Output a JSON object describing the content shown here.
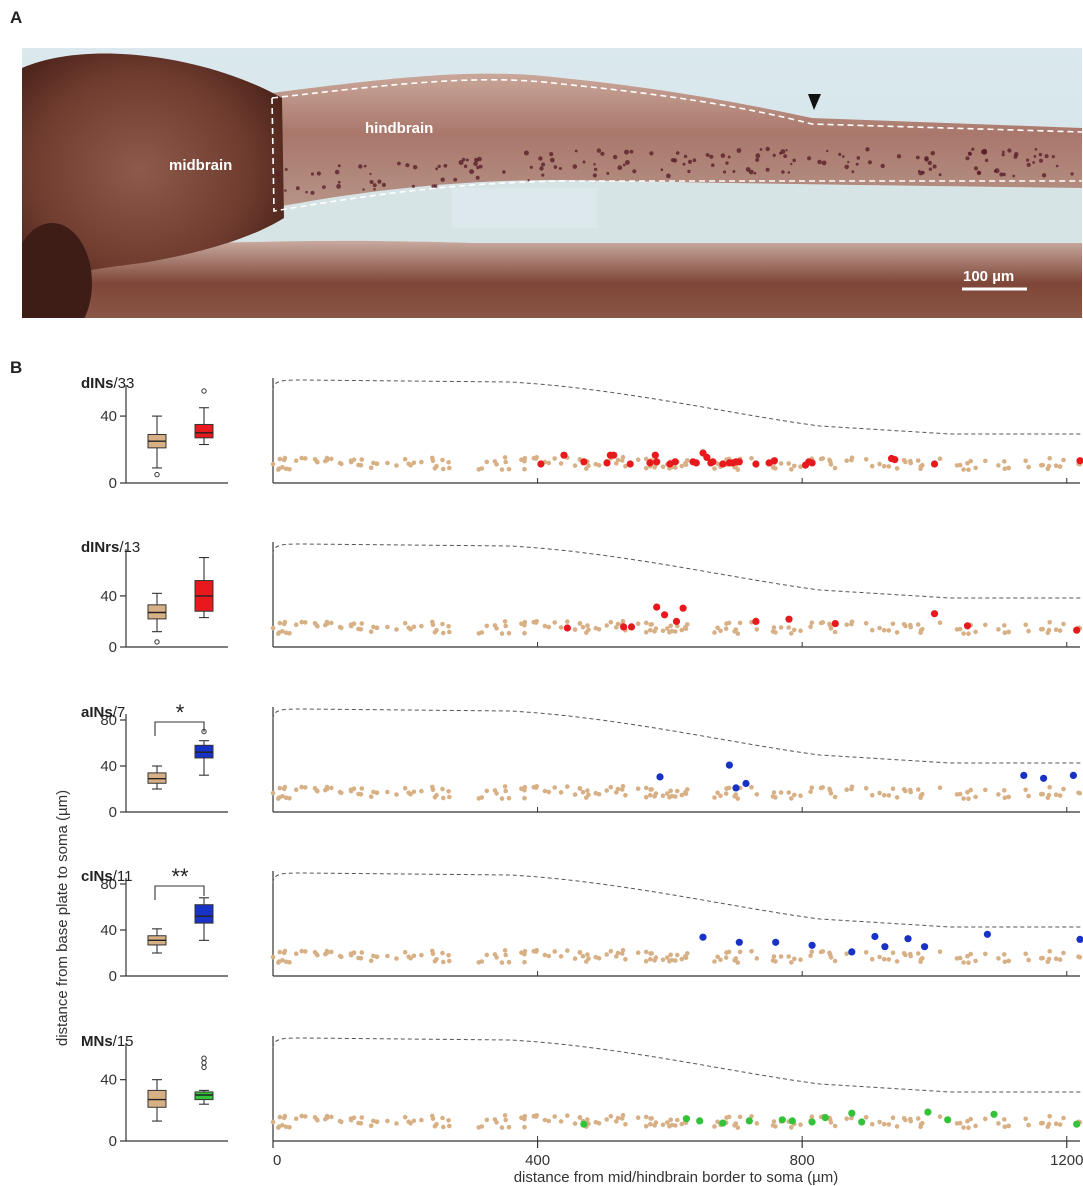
{
  "panel_a": {
    "letter": "A",
    "labels": {
      "midbrain": "midbrain",
      "hindbrain": "hindbrain"
    },
    "scale_bar": "100 µm"
  },
  "panel_b": {
    "letter": "B",
    "y_axis_title": "distance from base plate to soma (µm)",
    "x_axis_title": "distance from mid/hindbrain border to soma (µm)",
    "x_ticks": [
      "0",
      "400",
      "800",
      "1200"
    ]
  },
  "colors": {
    "background": "#d8b086",
    "red": "#e8191c",
    "blue": "#1732c4",
    "green": "#33c23a"
  },
  "chart_data": [
    {
      "type": "scatter",
      "title": "dINs/33",
      "ylim": [
        0,
        50
      ],
      "xlim": [
        0,
        1220
      ],
      "box": {
        "ticks": [
          "0",
          "40"
        ],
        "tick_values": [
          0,
          40
        ],
        "ylim": [
          0,
          55
        ],
        "background": {
          "whisker_low": 9,
          "q1": 21,
          "median": 25,
          "q3": 29,
          "whisker_high": 40,
          "outliers": [
            5
          ]
        },
        "labelled": {
          "whisker_low": 23,
          "q1": 27,
          "median": 30,
          "q3": 35,
          "whisker_high": 45,
          "outliers": [
            55
          ]
        }
      },
      "color": "#e8191c",
      "points": [
        [
          405,
          10
        ],
        [
          440,
          18
        ],
        [
          470,
          12
        ],
        [
          505,
          11
        ],
        [
          510,
          18
        ],
        [
          515,
          18
        ],
        [
          540,
          10
        ],
        [
          570,
          11
        ],
        [
          578,
          18
        ],
        [
          580,
          12
        ],
        [
          600,
          10
        ],
        [
          608,
          12
        ],
        [
          635,
          12
        ],
        [
          640,
          11
        ],
        [
          650,
          20
        ],
        [
          656,
          16
        ],
        [
          662,
          11
        ],
        [
          665,
          12
        ],
        [
          680,
          10
        ],
        [
          690,
          11
        ],
        [
          695,
          11
        ],
        [
          700,
          12
        ],
        [
          705,
          12
        ],
        [
          730,
          10
        ],
        [
          750,
          11
        ],
        [
          758,
          13
        ],
        [
          805,
          9
        ],
        [
          810,
          12
        ],
        [
          815,
          11
        ],
        [
          935,
          15
        ],
        [
          940,
          14
        ],
        [
          1000,
          10
        ],
        [
          1220,
          13
        ]
      ]
    },
    {
      "type": "scatter",
      "title": "dINrs/13",
      "ylim": [
        0,
        50
      ],
      "xlim": [
        0,
        1220
      ],
      "box": {
        "ticks": [
          "0",
          "40"
        ],
        "tick_values": [
          0,
          40
        ],
        "ylim": [
          0,
          72
        ],
        "background": {
          "whisker_low": 12,
          "q1": 22,
          "median": 27,
          "q3": 33,
          "whisker_high": 42,
          "outliers": [
            4
          ]
        },
        "labelled": {
          "whisker_low": 23,
          "q1": 28,
          "median": 40,
          "q3": 52,
          "whisker_high": 70,
          "outliers": []
        }
      },
      "color": "#e8191c",
      "points": [
        [
          445,
          10
        ],
        [
          530,
          11
        ],
        [
          542,
          11
        ],
        [
          580,
          29
        ],
        [
          592,
          22
        ],
        [
          610,
          16
        ],
        [
          620,
          28
        ],
        [
          730,
          16
        ],
        [
          780,
          18
        ],
        [
          850,
          14
        ],
        [
          1000,
          23
        ],
        [
          1050,
          12
        ],
        [
          1215,
          8
        ]
      ]
    },
    {
      "type": "scatter",
      "title": "aINs/7",
      "ylim": [
        0,
        75
      ],
      "xlim": [
        0,
        1220
      ],
      "box": {
        "ticks": [
          "0",
          "40",
          "80"
        ],
        "tick_values": [
          0,
          40,
          80
        ],
        "ylim": [
          0,
          80
        ],
        "background": {
          "whisker_low": 20,
          "q1": 25,
          "median": 29,
          "q3": 34,
          "whisker_high": 40,
          "outliers": []
        },
        "labelled": {
          "whisker_low": 32,
          "q1": 47,
          "median": 52,
          "q3": 58,
          "whisker_high": 62,
          "outliers": [
            70
          ]
        },
        "significance": "*"
      },
      "color": "#1732c4",
      "points": [
        [
          585,
          37
        ],
        [
          690,
          53
        ],
        [
          700,
          22
        ],
        [
          715,
          28
        ],
        [
          1135,
          39
        ],
        [
          1165,
          35
        ],
        [
          1210,
          39
        ]
      ]
    },
    {
      "type": "scatter",
      "title": "cINs/11",
      "ylim": [
        0,
        75
      ],
      "xlim": [
        0,
        1220
      ],
      "box": {
        "ticks": [
          "0",
          "40",
          "80"
        ],
        "tick_values": [
          0,
          40,
          80
        ],
        "ylim": [
          0,
          80
        ],
        "background": {
          "whisker_low": 20,
          "q1": 27,
          "median": 31,
          "q3": 35,
          "whisker_high": 41,
          "outliers": []
        },
        "labelled": {
          "whisker_low": 31,
          "q1": 46,
          "median": 52,
          "q3": 62,
          "whisker_high": 68,
          "outliers": []
        },
        "significance": "**"
      },
      "color": "#1732c4",
      "points": [
        [
          650,
          42
        ],
        [
          705,
          35
        ],
        [
          760,
          35
        ],
        [
          815,
          31
        ],
        [
          875,
          22
        ],
        [
          910,
          43
        ],
        [
          925,
          29
        ],
        [
          960,
          40
        ],
        [
          985,
          29
        ],
        [
          1080,
          46
        ],
        [
          1220,
          39
        ]
      ]
    },
    {
      "type": "scatter",
      "title": "MNs/15",
      "ylim": [
        0,
        50
      ],
      "xlim": [
        0,
        1220
      ],
      "box": {
        "ticks": [
          "0",
          "40"
        ],
        "tick_values": [
          0,
          40
        ],
        "ylim": [
          0,
          60
        ],
        "background": {
          "whisker_low": 13,
          "q1": 22,
          "median": 27,
          "q3": 33,
          "whisker_high": 40,
          "outliers": []
        },
        "labelled": {
          "whisker_low": 24,
          "q1": 27,
          "median": 30,
          "q3": 32,
          "whisker_high": 33,
          "outliers": [
            48,
            51,
            54
          ]
        }
      },
      "color": "#33c23a",
      "points": [
        [
          470,
          8
        ],
        [
          625,
          13
        ],
        [
          645,
          11
        ],
        [
          680,
          9
        ],
        [
          720,
          11
        ],
        [
          770,
          12
        ],
        [
          785,
          11
        ],
        [
          815,
          10
        ],
        [
          835,
          14
        ],
        [
          875,
          18
        ],
        [
          890,
          10
        ],
        [
          990,
          19
        ],
        [
          1020,
          12
        ],
        [
          1090,
          17
        ],
        [
          1215,
          8
        ]
      ]
    }
  ]
}
